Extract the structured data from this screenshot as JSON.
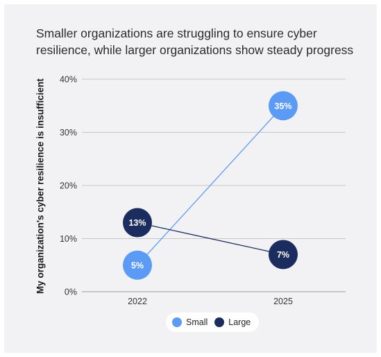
{
  "title_lines": [
    "Smaller organizations are struggling to ensure cyber",
    "resilience, while larger organizations show steady progress"
  ],
  "chart_data": {
    "type": "line",
    "title": "Smaller organizations are struggling to ensure cyber resilience, while larger organizations show steady progress",
    "xlabel": "",
    "ylabel": "My organization's cyber resilience is insufficient",
    "categories": [
      "2022",
      "2025"
    ],
    "series": [
      {
        "name": "Small",
        "values": [
          5,
          35
        ],
        "labels": [
          "5%",
          "35%"
        ],
        "color": "#5b9bf5"
      },
      {
        "name": "Large",
        "values": [
          13,
          7
        ],
        "labels": [
          "13%",
          "7%"
        ],
        "color": "#1b2c5e"
      }
    ],
    "ylim": [
      0,
      40
    ],
    "yticks": [
      {
        "value": 0,
        "label": "0%"
      },
      {
        "value": 10,
        "label": "10%"
      },
      {
        "value": 20,
        "label": "20%"
      },
      {
        "value": 30,
        "label": "30%"
      },
      {
        "value": 40,
        "label": "40%"
      }
    ],
    "grid": true,
    "legend_position": "bottom-center"
  }
}
